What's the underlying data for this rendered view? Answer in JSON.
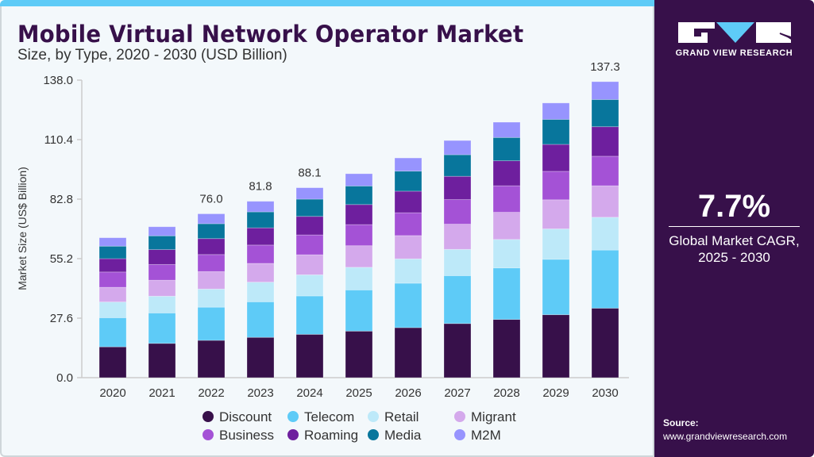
{
  "header": {
    "title": "Mobile Virtual Network Operator Market",
    "subtitle": "Size, by Type, 2020 - 2030 (USD Billion)"
  },
  "sidebar": {
    "brand": "GRAND VIEW RESEARCH",
    "cagr_value": "7.7%",
    "cagr_label_1": "Global Market CAGR,",
    "cagr_label_2": "2025 - 2030",
    "source_label": "Source:",
    "source_url": "www.grandviewresearch.com"
  },
  "colors": {
    "accent": "#5ecbf7",
    "panel": "#37104a"
  },
  "chart_data": {
    "type": "bar",
    "stacked": true,
    "title": "Mobile Virtual Network Operator Market",
    "subtitle": "Size, by Type, 2020 - 2030 (USD Billion)",
    "xlabel": "",
    "ylabel": "Market Size (US$ Billion)",
    "ylim": [
      0,
      138
    ],
    "yticks": [
      "0.0",
      "27.6",
      "55.2",
      "82.8",
      "110.4",
      "138.0"
    ],
    "categories": [
      "2020",
      "2021",
      "2022",
      "2023",
      "2024",
      "2025",
      "2026",
      "2027",
      "2028",
      "2029",
      "2030"
    ],
    "series": [
      {
        "name": "Discount",
        "color": "#37104a",
        "values": [
          14.3,
          15.9,
          17.3,
          18.7,
          20.1,
          21.6,
          23.2,
          25.1,
          27.0,
          29.2,
          32.2
        ]
      },
      {
        "name": "Telecom",
        "color": "#5ecbf7",
        "values": [
          13.5,
          14.1,
          15.4,
          16.5,
          17.8,
          19.1,
          20.6,
          22.2,
          23.9,
          25.7,
          27.0
        ]
      },
      {
        "name": "Retail",
        "color": "#bde9f9",
        "values": [
          7.3,
          7.8,
          8.4,
          9.1,
          9.8,
          10.5,
          11.3,
          12.2,
          13.2,
          14.1,
          15.2
        ]
      },
      {
        "name": "Migrant",
        "color": "#d4a9ec",
        "values": [
          6.8,
          7.4,
          8.1,
          8.7,
          9.3,
          10.0,
          10.8,
          11.7,
          12.6,
          13.5,
          14.6
        ]
      },
      {
        "name": "Business",
        "color": "#a452d6",
        "values": [
          7.1,
          7.3,
          7.9,
          8.5,
          9.2,
          9.8,
          10.6,
          11.4,
          12.3,
          13.2,
          13.7
        ]
      },
      {
        "name": "Roaming",
        "color": "#6e1f9e",
        "values": [
          6.2,
          6.9,
          7.4,
          8.0,
          8.6,
          9.3,
          10.0,
          10.8,
          11.6,
          12.5,
          13.7
        ]
      },
      {
        "name": "Media",
        "color": "#08769c",
        "values": [
          5.8,
          6.4,
          6.9,
          7.4,
          8.0,
          8.6,
          9.3,
          10.0,
          10.8,
          11.6,
          12.6
        ]
      },
      {
        "name": "M2M",
        "color": "#9794fe",
        "values": [
          3.9,
          4.2,
          4.6,
          4.9,
          5.3,
          5.7,
          6.1,
          6.6,
          7.1,
          7.6,
          8.3
        ]
      }
    ],
    "data_labels": {
      "2022": "76.0",
      "2023": "81.8",
      "2024": "88.1",
      "2030": "137.3"
    },
    "legend": "bottom",
    "grid": false
  }
}
